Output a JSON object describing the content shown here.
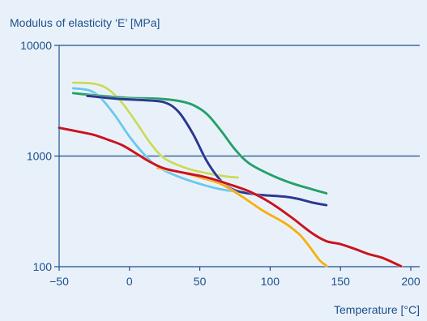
{
  "chart_data": {
    "type": "line",
    "title": "",
    "ylabel": "Modulus of elasticity ‘E’ [MPa]",
    "xlabel": "Temperature [°C]",
    "x_scale": "linear",
    "y_scale": "log",
    "xlim": [
      -50,
      200
    ],
    "ylim": [
      100,
      10000
    ],
    "x_ticks": [
      "−50",
      "0",
      "50",
      "100",
      "150",
      "200"
    ],
    "x_tick_values": [
      -50,
      0,
      50,
      100,
      150,
      200
    ],
    "y_ticks": [
      "100",
      "1000",
      "10000"
    ],
    "y_tick_values": [
      100,
      1000,
      10000
    ],
    "grid": "horizontal",
    "colors": {
      "background": "#e8f1fa",
      "axis": "#1d4f8c",
      "text": "#1d4f8c"
    },
    "series": [
      {
        "color": "#c8dc64",
        "x": [
          -40,
          -25,
          -15,
          -5,
          5,
          15,
          25,
          40,
          55,
          70,
          77
        ],
        "y": [
          4600,
          4500,
          4000,
          3000,
          2000,
          1300,
          950,
          780,
          700,
          650,
          640
        ]
      },
      {
        "color": "#6ec8ec",
        "x": [
          -40,
          -28,
          -20,
          -10,
          0,
          10,
          20,
          35,
          50,
          65,
          75
        ],
        "y": [
          4100,
          3900,
          3300,
          2300,
          1500,
          1050,
          800,
          650,
          560,
          500,
          480
        ]
      },
      {
        "color": "#27a06c",
        "x": [
          -40,
          -20,
          0,
          20,
          35,
          45,
          55,
          65,
          75,
          85,
          100,
          115,
          130,
          140
        ],
        "y": [
          3700,
          3500,
          3350,
          3300,
          3150,
          2900,
          2400,
          1700,
          1150,
          860,
          680,
          570,
          500,
          460
        ]
      },
      {
        "color": "#2b3990",
        "x": [
          -30,
          -10,
          10,
          25,
          35,
          45,
          55,
          65,
          75,
          90,
          110,
          120,
          130,
          140
        ],
        "y": [
          3500,
          3300,
          3200,
          3050,
          2500,
          1600,
          900,
          600,
          490,
          450,
          430,
          410,
          380,
          360
        ]
      },
      {
        "color": "#f5b016",
        "x": [
          20,
          35,
          50,
          65,
          80,
          95,
          110,
          120,
          125,
          130,
          135,
          140
        ],
        "y": [
          780,
          720,
          640,
          560,
          430,
          320,
          250,
          200,
          170,
          140,
          115,
          102
        ]
      },
      {
        "color": "#c8141e",
        "x": [
          -50,
          -35,
          -25,
          -15,
          -5,
          5,
          15,
          25,
          40,
          55,
          70,
          85,
          100,
          115,
          130,
          140,
          150,
          160,
          170,
          180,
          193
        ],
        "y": [
          1800,
          1650,
          1550,
          1400,
          1250,
          1050,
          880,
          770,
          700,
          640,
          560,
          480,
          380,
          280,
          200,
          170,
          160,
          145,
          130,
          120,
          101
        ]
      }
    ]
  }
}
